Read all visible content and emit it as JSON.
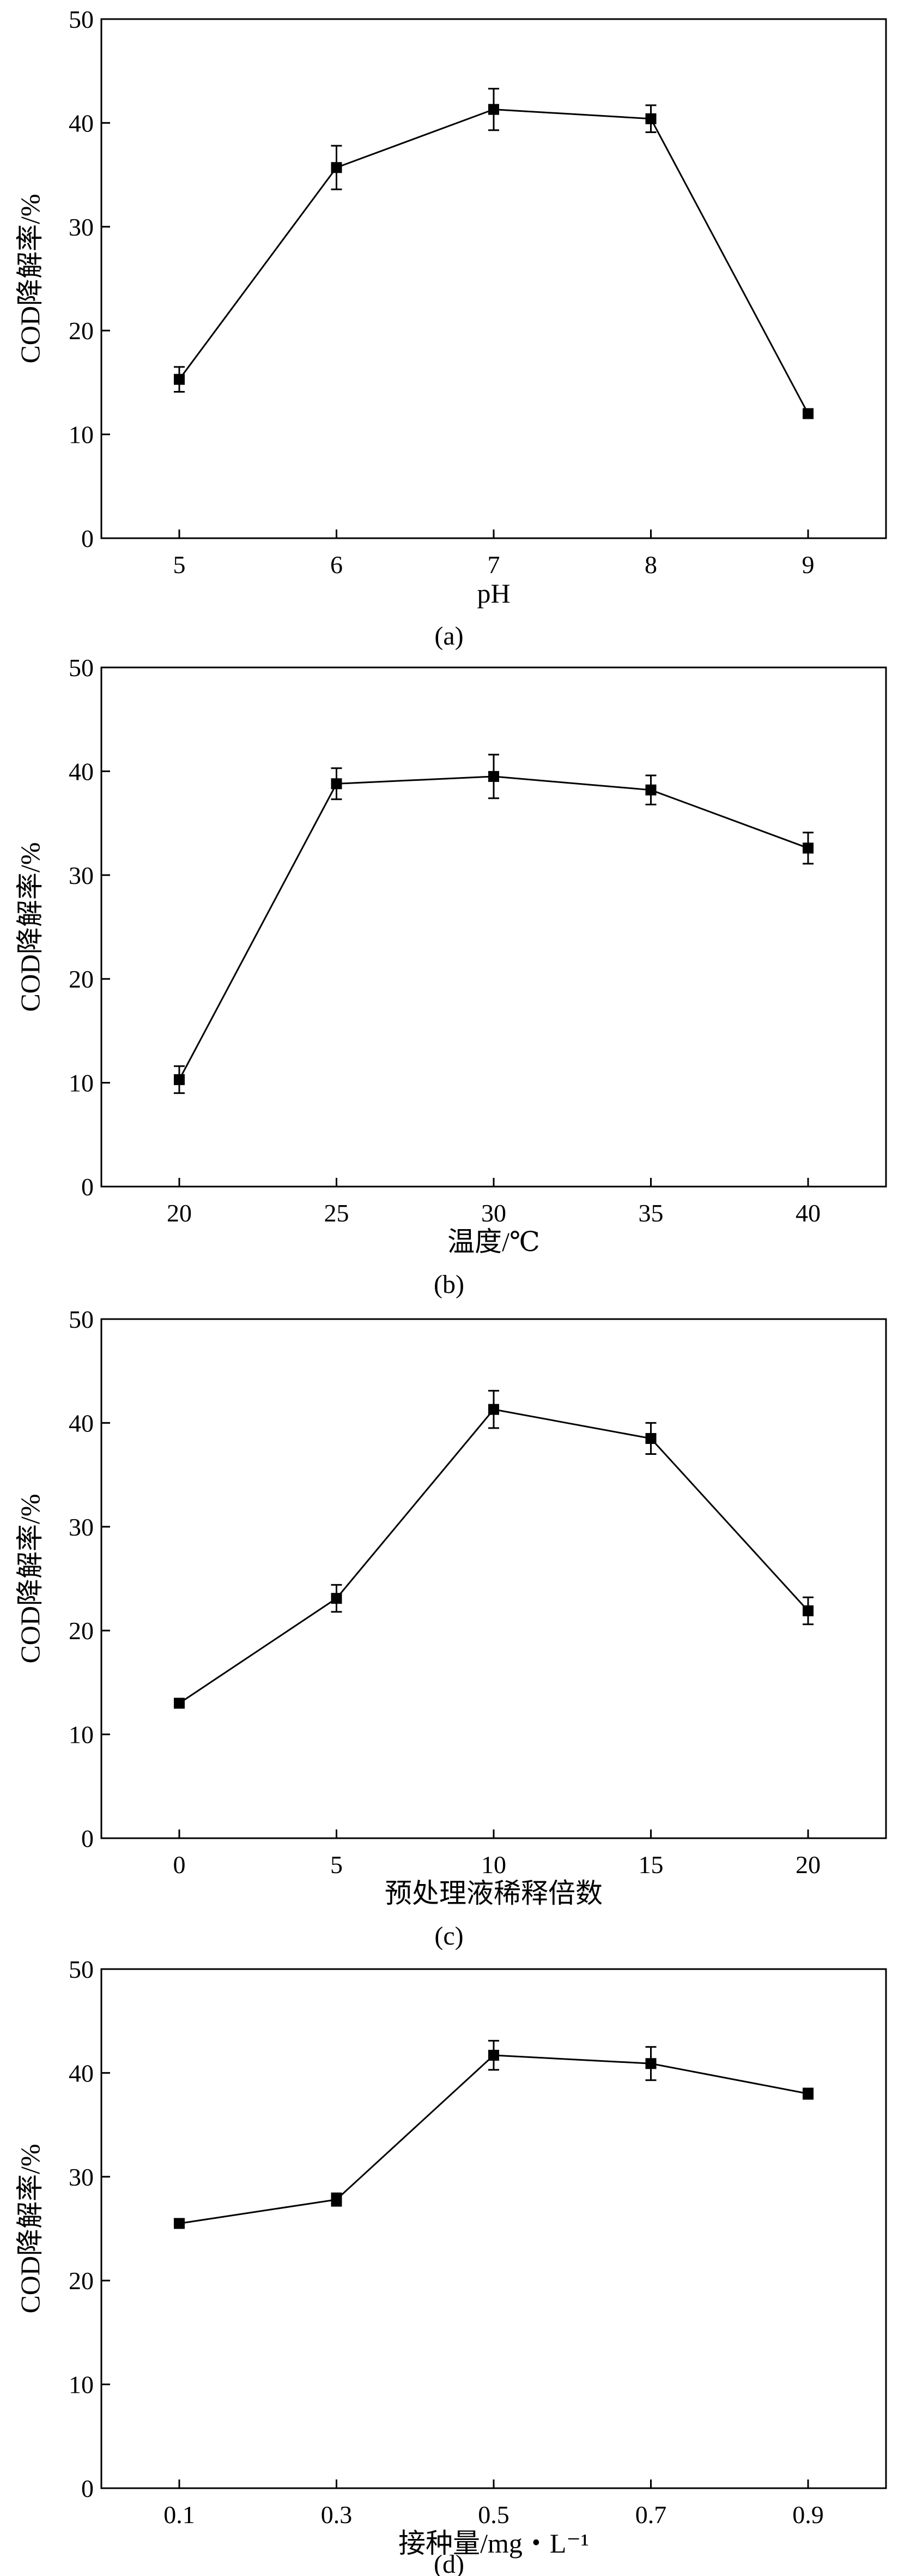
{
  "chart_data": [
    {
      "type": "line",
      "caption": "(a)",
      "xlabel": "pH",
      "ylabel": "COD降解率/%",
      "categories": [
        "5",
        "6",
        "7",
        "8",
        "9"
      ],
      "values": [
        15.3,
        35.7,
        41.3,
        40.4,
        12.0
      ],
      "errors": [
        1.2,
        2.1,
        2.0,
        1.3,
        0.3
      ],
      "ylim": [
        0,
        50
      ],
      "yticks": [
        "0",
        "10",
        "20",
        "30",
        "40",
        "50"
      ],
      "grid": false
    },
    {
      "type": "line",
      "caption": "(b)",
      "xlabel": "温度/℃",
      "ylabel": "COD降解率/%",
      "categories": [
        "20",
        "25",
        "30",
        "35",
        "40"
      ],
      "values": [
        10.3,
        38.8,
        39.5,
        38.2,
        32.6
      ],
      "errors": [
        1.3,
        1.5,
        2.1,
        1.4,
        1.5
      ],
      "ylim": [
        0,
        50
      ],
      "yticks": [
        "0",
        "10",
        "20",
        "30",
        "40",
        "50"
      ],
      "grid": false
    },
    {
      "type": "line",
      "caption": "(c)",
      "xlabel": "预处理液稀释倍数",
      "ylabel": "COD降解率/%",
      "categories": [
        "0",
        "5",
        "10",
        "15",
        "20"
      ],
      "values": [
        13.0,
        23.1,
        41.3,
        38.5,
        21.9
      ],
      "errors": [
        0.3,
        1.3,
        1.8,
        1.5,
        1.3
      ],
      "ylim": [
        0,
        50
      ],
      "yticks": [
        "0",
        "10",
        "20",
        "30",
        "40",
        "50"
      ],
      "grid": false
    },
    {
      "type": "line",
      "caption": "(d)",
      "xlabel": "接种量/mg・L⁻¹",
      "ylabel": "COD降解率/%",
      "categories": [
        "0.1",
        "0.3",
        "0.5",
        "0.7",
        "0.9"
      ],
      "values": [
        25.5,
        27.8,
        41.7,
        40.9,
        38.0
      ],
      "errors": [
        0.4,
        0.6,
        1.4,
        1.6,
        0.5
      ],
      "ylim": [
        0,
        50
      ],
      "yticks": [
        "0",
        "10",
        "20",
        "30",
        "40",
        "50"
      ],
      "grid": false
    }
  ]
}
